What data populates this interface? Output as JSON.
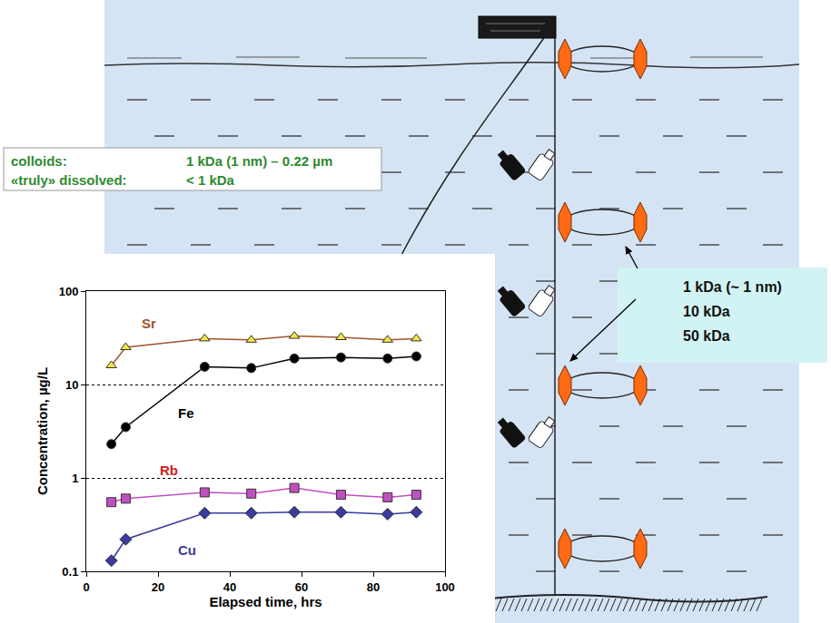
{
  "chart_data": {
    "type": "line",
    "xlabel": "Elapsed time, hrs",
    "ylabel": "Concentration, µg/L",
    "x": [
      7,
      11,
      33,
      46,
      58,
      71,
      84,
      92
    ],
    "xlim": [
      0,
      100
    ],
    "xticks": [
      0,
      20,
      40,
      60,
      80,
      100
    ],
    "ylim": [
      0.1,
      100
    ],
    "yticks": [
      0.1,
      1,
      10,
      100
    ],
    "log": "y",
    "grid": true,
    "series": [
      {
        "name": "Sr",
        "color": "#f5e642",
        "marker": "triangle-up",
        "values": [
          16,
          25,
          31,
          30,
          33,
          32,
          30,
          31
        ]
      },
      {
        "name": "Fe",
        "color": "#000000",
        "marker": "circle",
        "values": [
          2.3,
          3.5,
          15.5,
          15,
          19,
          19.5,
          19,
          20
        ]
      },
      {
        "name": "Rb",
        "color": "#c050c0",
        "marker": "square",
        "values": [
          0.55,
          0.6,
          0.7,
          0.68,
          0.78,
          0.66,
          0.62,
          0.66
        ]
      },
      {
        "name": "Cu",
        "color": "#3a3aa0",
        "marker": "diamond",
        "values": [
          0.13,
          0.22,
          0.42,
          0.42,
          0.43,
          0.43,
          0.41,
          0.43
        ]
      }
    ]
  },
  "diagram": {
    "definitions": [
      {
        "label": "colloids:",
        "value": "1 kDa (1 nm) – 0.22 µm"
      },
      {
        "label": "«truly» dissolved:",
        "value": "< 1 kDa"
      }
    ],
    "callout": [
      "1 kDa (~ 1 nm)",
      "10 kDa",
      "50 kDa"
    ]
  }
}
